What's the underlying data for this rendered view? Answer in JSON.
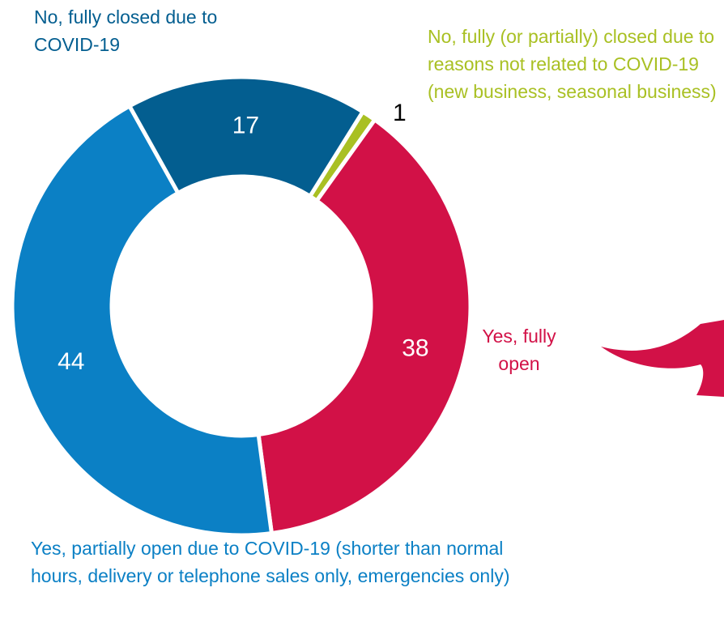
{
  "chart_data": {
    "type": "donut",
    "categories": [
      "No, fully (or partially) closed due to reasons not related to COVID-19 (new business, seasonal business)",
      "Yes, fully open",
      "Yes, partially open due to COVID-19 (shorter than normal hours, delivery or telephone sales only, emergencies only)",
      "No, fully closed due to COVID-19"
    ],
    "values": [
      1,
      38,
      44,
      17
    ],
    "colors": [
      "#a9c023",
      "#d21147",
      "#0b80c5",
      "#035e90"
    ]
  }
}
